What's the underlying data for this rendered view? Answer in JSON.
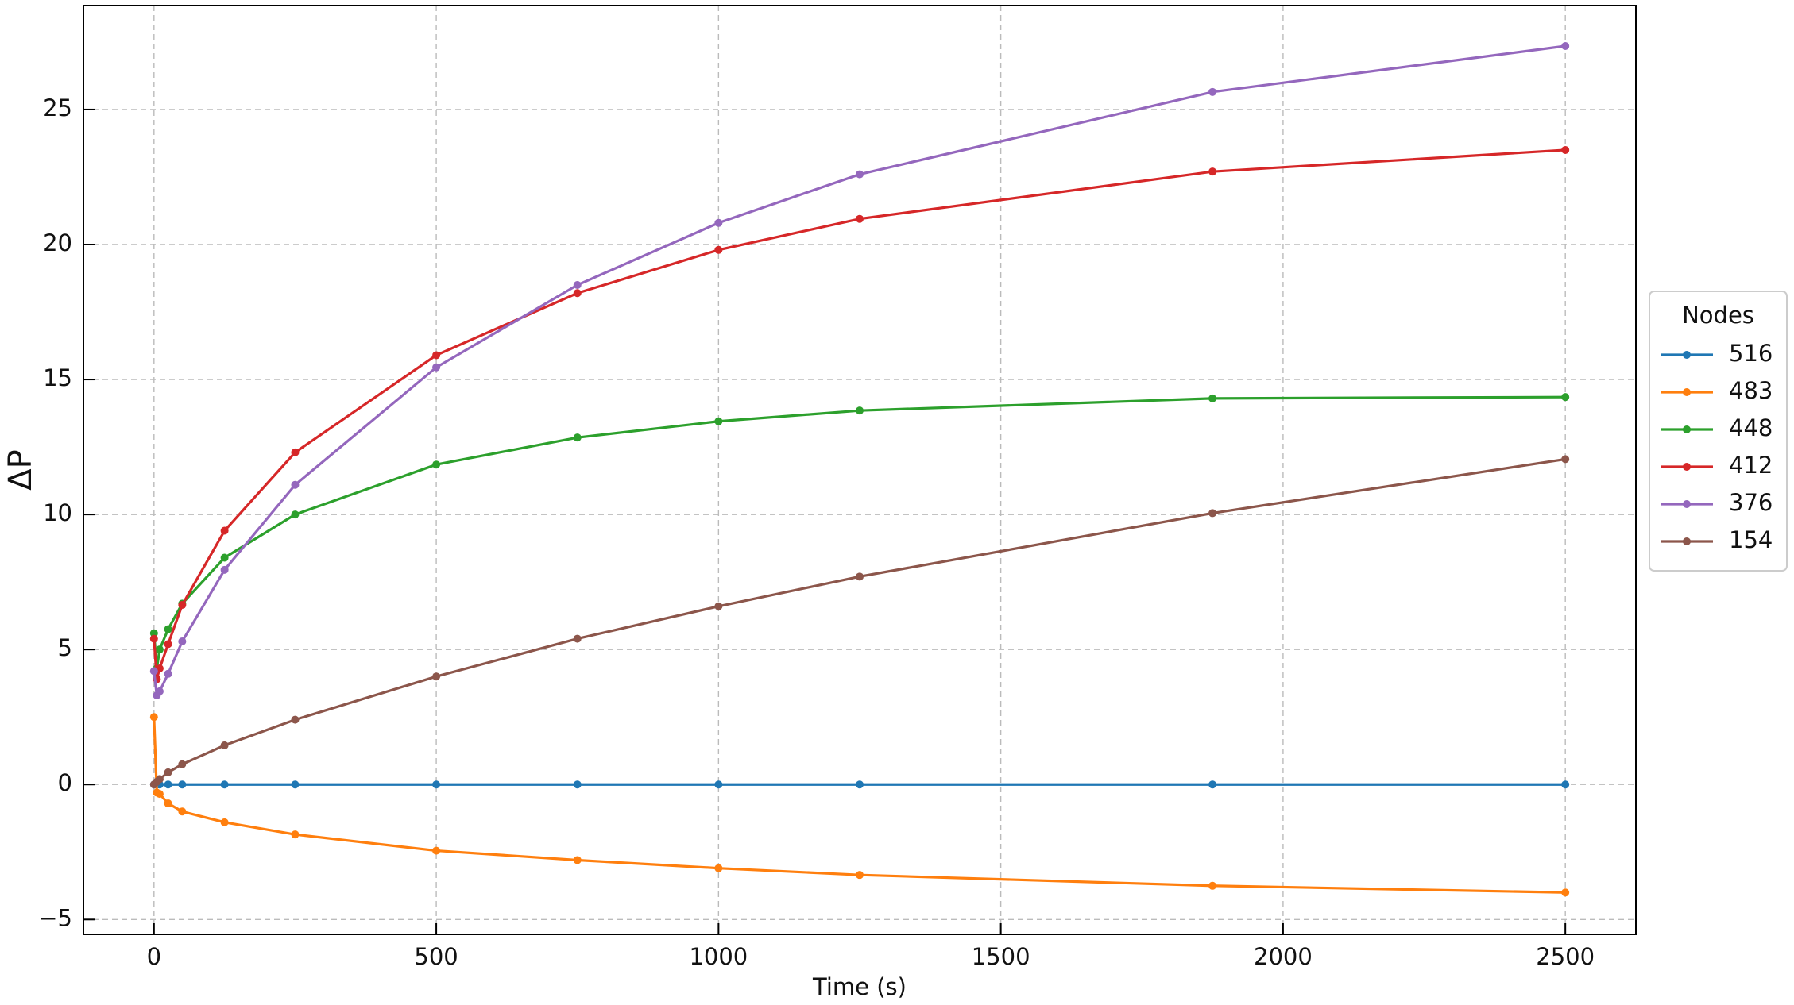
{
  "chart_data": {
    "type": "line",
    "xlabel": "Time (s)",
    "ylabel": "ΔP",
    "x": [
      0,
      5,
      10,
      25,
      50,
      125,
      250,
      500,
      750,
      1000,
      1250,
      1875,
      2500
    ],
    "series": [
      {
        "name": "516",
        "color": "#1f77b4",
        "values": [
          0,
          0,
          0,
          0,
          0,
          0,
          0,
          0,
          0,
          0,
          0,
          0,
          0
        ]
      },
      {
        "name": "483",
        "color": "#ff7f0e",
        "values": [
          2.5,
          -0.3,
          -0.35,
          -0.7,
          -1.0,
          -1.4,
          -1.85,
          -2.45,
          -2.8,
          -3.1,
          -3.35,
          -3.75,
          -4.0
        ]
      },
      {
        "name": "448",
        "color": "#2ca02c",
        "values": [
          5.6,
          4.3,
          5.0,
          5.75,
          6.7,
          8.4,
          10.0,
          11.85,
          12.85,
          13.45,
          13.85,
          14.3,
          14.35
        ]
      },
      {
        "name": "412",
        "color": "#d62728",
        "values": [
          5.4,
          3.9,
          4.3,
          5.2,
          6.65,
          9.4,
          12.3,
          15.9,
          18.2,
          19.8,
          20.95,
          22.7,
          23.5
        ]
      },
      {
        "name": "376",
        "color": "#9467bd",
        "values": [
          4.2,
          3.3,
          3.45,
          4.1,
          5.3,
          7.95,
          11.1,
          15.45,
          18.5,
          20.8,
          22.6,
          25.65,
          27.35
        ]
      },
      {
        "name": "154",
        "color": "#8c564b",
        "values": [
          0.0,
          0.1,
          0.2,
          0.45,
          0.75,
          1.45,
          2.4,
          4.0,
          5.4,
          6.6,
          7.7,
          10.05,
          12.05
        ]
      }
    ],
    "legend_title": "Nodes",
    "legend": "right",
    "xlim": [
      -125,
      2625
    ],
    "xticks": [
      0,
      500,
      1000,
      1500,
      2000,
      2500
    ],
    "ylim": [
      -5.55,
      28.85
    ],
    "yticks": [
      {
        "value": -5,
        "label": "−5"
      },
      0,
      5,
      10,
      15,
      20,
      25
    ],
    "grid": true
  }
}
